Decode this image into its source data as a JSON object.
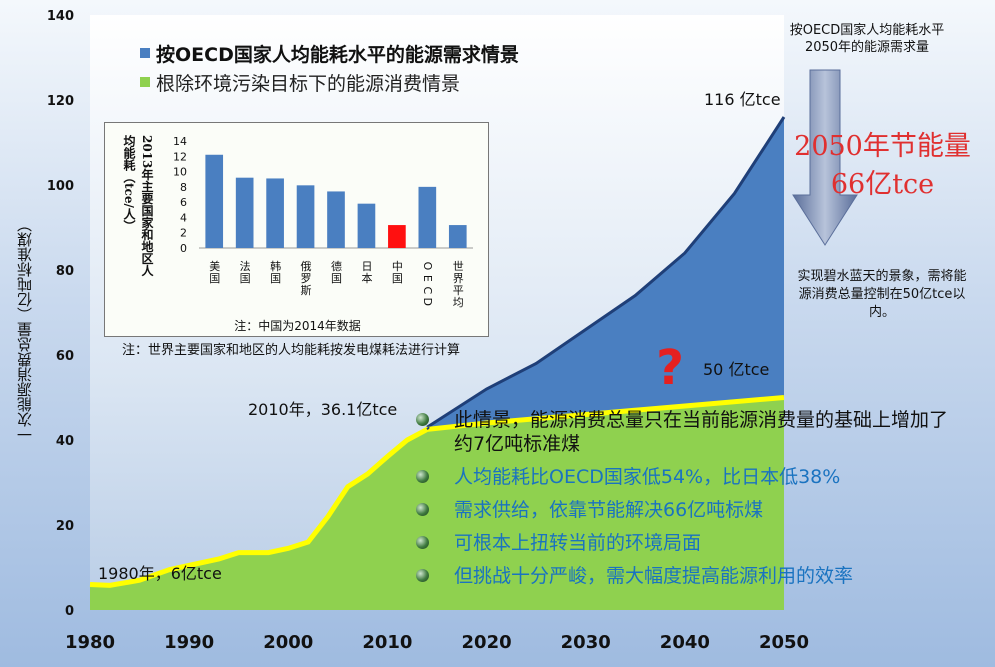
{
  "chart_data": [
    {
      "type": "area",
      "ylabel": "一次能源消费总量（亿吨标准煤）",
      "x_range": [
        1980,
        2050
      ],
      "ylim": [
        0,
        140
      ],
      "x_ticks": [
        "1980",
        "1990",
        "2000",
        "2010",
        "2020",
        "2030",
        "2040",
        "2050"
      ],
      "y_ticks": [
        "0",
        "20",
        "40",
        "60",
        "80",
        "100",
        "120",
        "140"
      ],
      "legend": [
        {
          "label": "按OECD国家人均能耗水平的能源需求情景",
          "color": "#4a7fc1"
        },
        {
          "label": "根除环境污染目标下的能源消费情景",
          "color": "#8fd14f"
        }
      ],
      "series": [
        {
          "name": "按OECD国家人均能耗水平的能源需求情景",
          "color": "#4a7fc1",
          "x": [
            2014,
            2020,
            2025,
            2030,
            2035,
            2040,
            2045,
            2050
          ],
          "y": [
            43,
            52,
            58,
            66,
            74,
            84,
            98,
            116
          ]
        },
        {
          "name": "根除环境污染目标下的能源消费情景",
          "color": "#8fd14f",
          "x": [
            1980,
            1982,
            1985,
            1988,
            1990,
            1993,
            1995,
            1998,
            2000,
            2002,
            2004,
            2006,
            2008,
            2010,
            2012,
            2014,
            2020,
            2030,
            2040,
            2050
          ],
          "y": [
            6,
            5.8,
            7,
            9.5,
            10.5,
            12,
            13.5,
            13.5,
            14.5,
            16,
            22,
            29,
            32,
            36.1,
            40,
            42.5,
            44,
            46,
            48,
            50
          ]
        }
      ]
    },
    {
      "type": "bar",
      "ylabel": "2013年主要国家和地区人均能耗（tce/人）",
      "categories": [
        "美国",
        "法国",
        "韩国",
        "俄罗斯",
        "德国",
        "日本",
        "中国",
        "OECD",
        "世界平均"
      ],
      "values": [
        12.2,
        9.2,
        9.1,
        8.2,
        7.4,
        5.8,
        3.0,
        8.0,
        3.0
      ],
      "highlight_index": 6,
      "ylim": [
        0,
        14
      ],
      "y_ticks": [
        "0",
        "2",
        "4",
        "6",
        "8",
        "10",
        "12",
        "14"
      ],
      "colors": {
        "bar": "#4a7fc1",
        "highlight": "#ff1010"
      }
    }
  ],
  "inset": {
    "ylabel_line1": "2013年主要国家和地区人",
    "ylabel_line2": "均能耗（tce/人）",
    "note": "注：中国为2014年数据"
  },
  "annotations": {
    "start_label": "1980年，6亿tce",
    "mid_label": "2010年，36.1亿tce",
    "top_label": "116 亿tce",
    "green_end_label": "50 亿tce",
    "question": "?",
    "arrow_text": "按OECD国家人均能耗水平2050年的能源需求量",
    "saving_line1": "2050年节能量",
    "saving_line2": "66亿tce",
    "right_note": "实现碧水蓝天的景象，需将能源消费总量控制在50亿tce以内。",
    "footnote": "注：世界主要国家和地区的人均能耗按发电煤耗法进行计算"
  },
  "bullets": [
    {
      "text": "此情景，能源消费总量只在当前能源消费量的基础上增加了约7亿吨标准煤",
      "color": "#111111"
    },
    {
      "text": "人均能耗比OECD国家低54%，比日本低38%",
      "color": "#1a73c0"
    },
    {
      "text": "需求供给，依靠节能解决66亿吨标煤",
      "color": "#1a73c0"
    },
    {
      "text": "可根本上扭转当前的环境局面",
      "color": "#1a73c0"
    },
    {
      "text": "但挑战十分严峻，需大幅度提高能源利用的效率",
      "color": "#1a73c0"
    }
  ]
}
